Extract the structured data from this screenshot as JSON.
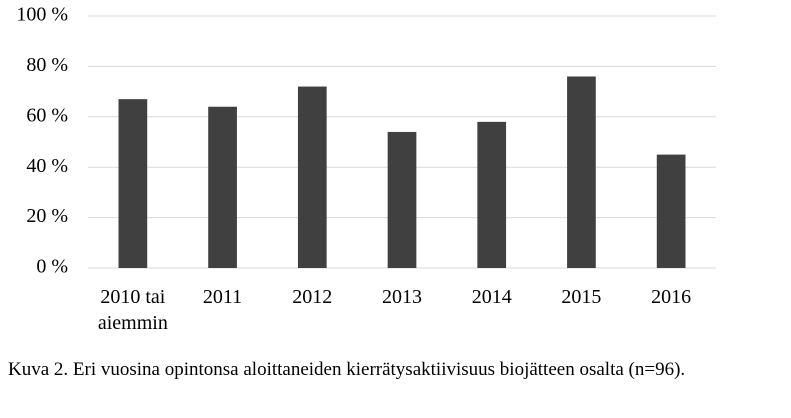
{
  "chart_data": {
    "type": "bar",
    "categories": [
      "2010 tai aiemmin",
      "2011",
      "2012",
      "2013",
      "2014",
      "2015",
      "2016"
    ],
    "values": [
      67,
      64,
      72,
      54,
      58,
      76,
      45
    ],
    "color": "#404040",
    "ylim": [
      0,
      100
    ],
    "yticks": [
      {
        "value": 0,
        "label": "0 %"
      },
      {
        "value": 20,
        "label": "20 %"
      },
      {
        "value": 40,
        "label": "40 %"
      },
      {
        "value": 60,
        "label": "60 %"
      },
      {
        "value": 80,
        "label": "80 %"
      },
      {
        "value": 100,
        "label": "100 %"
      }
    ],
    "grid": true,
    "caption": "Kuva 2. Eri vuosina opintonsa aloittaneiden kierrätysaktiivisuus biojätteen osalta (n=96)."
  }
}
